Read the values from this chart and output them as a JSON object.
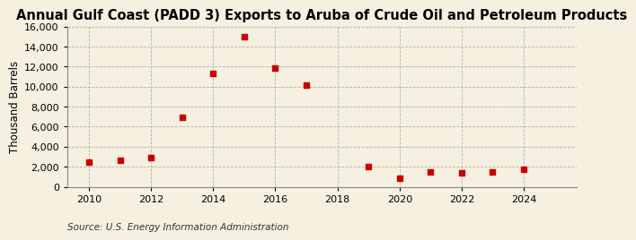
{
  "title": "Annual Gulf Coast (PADD 3) Exports to Aruba of Crude Oil and Petroleum Products",
  "ylabel": "Thousand Barrels",
  "source": "Source: U.S. Energy Information Administration",
  "background_color": "#f5f0e0",
  "marker_color": "#cc0000",
  "x": [
    2010,
    2011,
    2012,
    2013,
    2014,
    2015,
    2016,
    2017,
    2019,
    2020,
    2021,
    2022,
    2023,
    2024
  ],
  "y": [
    2500,
    2650,
    2900,
    6950,
    11300,
    14950,
    11850,
    10150,
    2050,
    850,
    1450,
    1350,
    1450,
    1750
  ],
  "xlim": [
    2009.3,
    2025.7
  ],
  "ylim": [
    0,
    16000
  ],
  "yticks": [
    0,
    2000,
    4000,
    6000,
    8000,
    10000,
    12000,
    14000,
    16000
  ],
  "xticks": [
    2010,
    2012,
    2014,
    2016,
    2018,
    2020,
    2022,
    2024
  ],
  "title_fontsize": 10.5,
  "label_fontsize": 8.5,
  "tick_fontsize": 8,
  "source_fontsize": 7.5,
  "marker_size": 20
}
